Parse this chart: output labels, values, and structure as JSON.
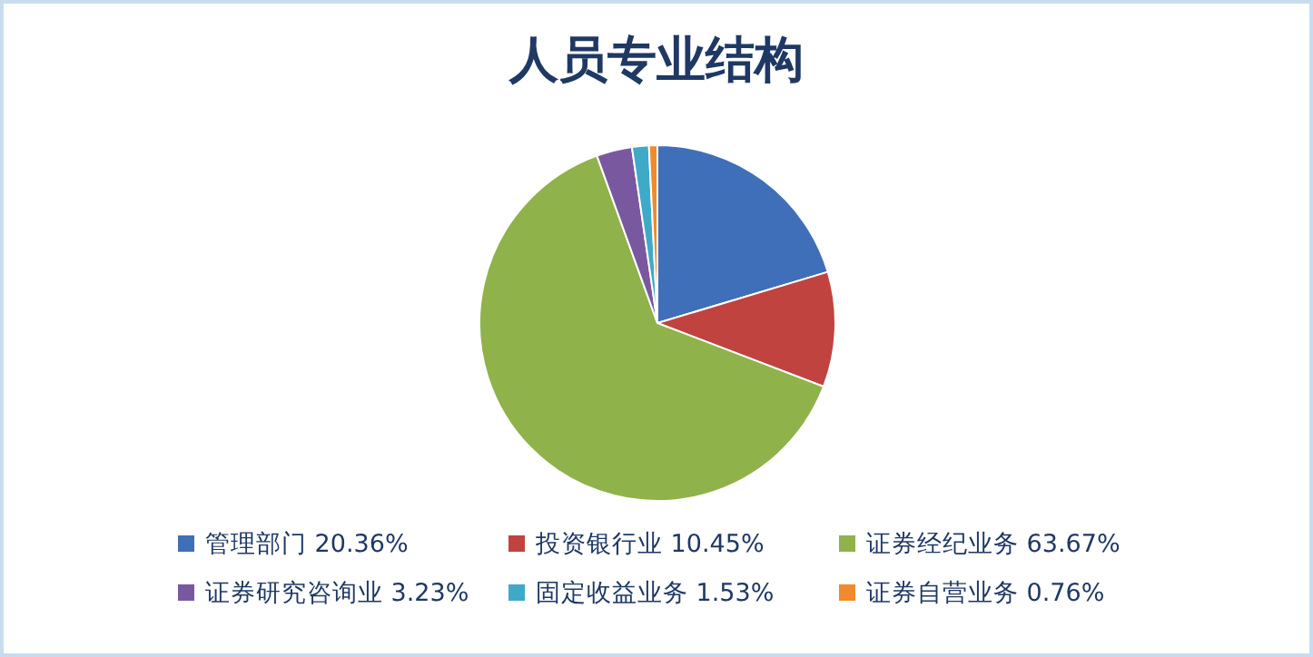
{
  "chart_data": {
    "type": "pie",
    "title": "人员专业结构",
    "categories": [
      "管理部门",
      "投资银行业",
      "证券经纪业务",
      "证券研究咨询业",
      "固定收益业务",
      "证券自营业务"
    ],
    "values": [
      20.36,
      10.45,
      63.67,
      3.23,
      1.53,
      0.76
    ],
    "value_labels": [
      "20.36%",
      "10.45%",
      "63.67%",
      "3.23%",
      "1.53%",
      "0.76%"
    ],
    "colors": [
      "#3f6fb8",
      "#c0433f",
      "#8fb24a",
      "#7a58a0",
      "#3fa9c8",
      "#f08a2c"
    ],
    "legend": "bottom"
  }
}
